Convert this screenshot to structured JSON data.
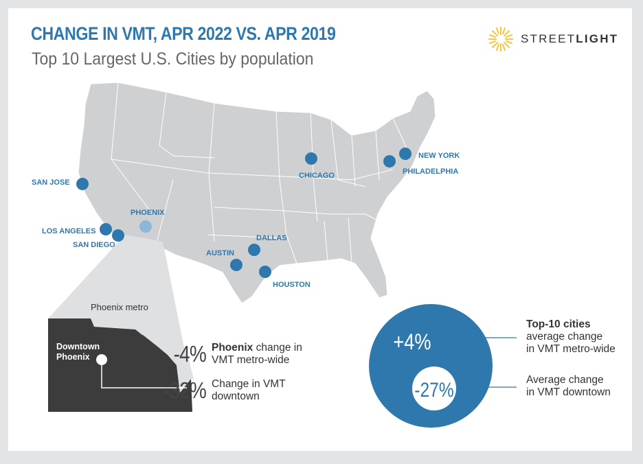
{
  "header": {
    "title": "CHANGE IN VMT, APR 2022 VS. APR 2019",
    "subtitle": "Top 10 Largest U.S. Cities by population",
    "brand_prefix": "STREET",
    "brand_suffix": "LIGHT"
  },
  "colors": {
    "accent": "#2f78ad",
    "map_fill": "#cfd0d2",
    "inset_dark": "#3c3c3c",
    "inset_light": "#dfe0e1"
  },
  "cities": [
    {
      "name": "NEW YORK"
    },
    {
      "name": "PHILADELPHIA"
    },
    {
      "name": "CHICAGO"
    },
    {
      "name": "SAN JOSE"
    },
    {
      "name": "PHOENIX"
    },
    {
      "name": "LOS ANGELES"
    },
    {
      "name": "SAN DIEGO"
    },
    {
      "name": "DALLAS"
    },
    {
      "name": "AUSTIN"
    },
    {
      "name": "HOUSTON"
    }
  ],
  "inset": {
    "metro_label": "Phoenix metro",
    "downtown_line1": "Downtown",
    "downtown_line2": "Phoenix"
  },
  "phoenix_stats": {
    "metro_value": "-4%",
    "metro_bold": "Phoenix",
    "metro_text1": "change in",
    "metro_text2": "VMT metro-wide",
    "downtown_value": "-32%",
    "downtown_text1": "Change in VMT",
    "downtown_text2": "downtown"
  },
  "top10": {
    "metro_value": "+4%",
    "downtown_value": "-27%",
    "metro_bold": "Top-10 cities",
    "metro_text1": "average change",
    "metro_text2": "in VMT metro-wide",
    "downtown_text1": "Average change",
    "downtown_text2": "in VMT downtown"
  }
}
